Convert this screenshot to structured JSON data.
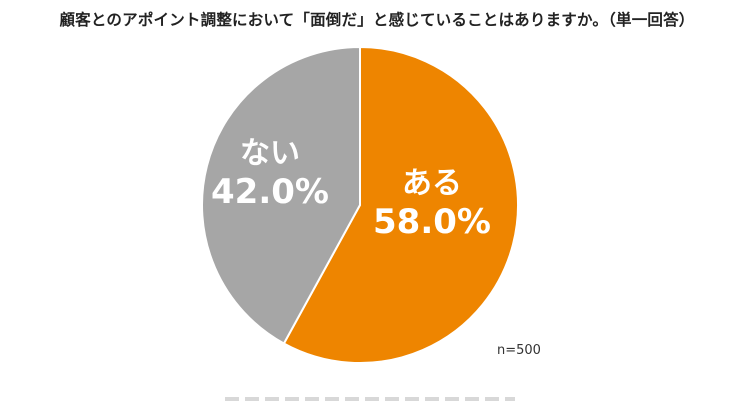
{
  "chart_data": {
    "type": "pie",
    "title": "顧客とのアポイント調整において「面倒だ」と感じていることはありますか。（単一回答）",
    "slices": [
      {
        "label": "ある",
        "value": 58.0,
        "value_label": "58.0%",
        "color": "#EE8500"
      },
      {
        "label": "ない",
        "value": 42.0,
        "value_label": "42.0%",
        "color": "#A6A6A6"
      }
    ],
    "start_angle_deg": 0,
    "direction": "clockwise",
    "label_color": "#FFFFFF"
  },
  "note": "n=500"
}
